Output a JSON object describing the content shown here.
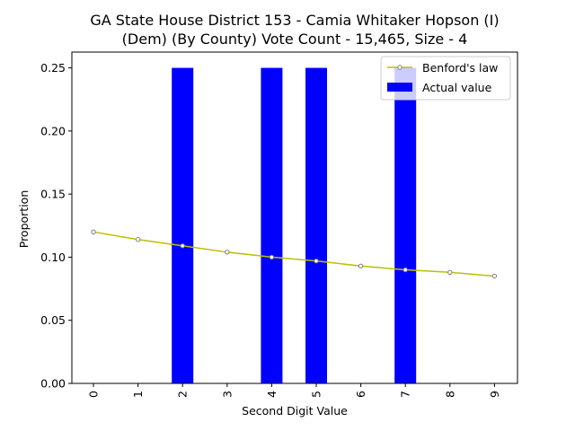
{
  "chart_data": {
    "type": "bar",
    "title": "GA State House District 153 - Camia Whitaker Hopson (I)\n(Dem) (By County) Vote Count - 15,465, Size - 4",
    "xlabel": "Second Digit Value",
    "ylabel": "Proportion",
    "categories": [
      "0",
      "1",
      "2",
      "3",
      "4",
      "5",
      "6",
      "7",
      "8",
      "9"
    ],
    "ylim": [
      0,
      0.2625
    ],
    "yticks": [
      "0.00",
      "0.05",
      "0.10",
      "0.15",
      "0.20",
      "0.25"
    ],
    "grid": false,
    "legend_position": "top-right",
    "series": [
      {
        "name": "Benford's law",
        "kind": "line",
        "color": "#bfbf00",
        "marker_color": "#808080",
        "values": [
          0.12,
          0.114,
          0.109,
          0.104,
          0.1,
          0.097,
          0.093,
          0.09,
          0.088,
          0.085
        ]
      },
      {
        "name": "Actual value",
        "kind": "bar",
        "color": "#0000ff",
        "values": [
          0,
          0,
          0.25,
          0,
          0.25,
          0.25,
          0,
          0.25,
          0,
          0
        ]
      }
    ]
  }
}
